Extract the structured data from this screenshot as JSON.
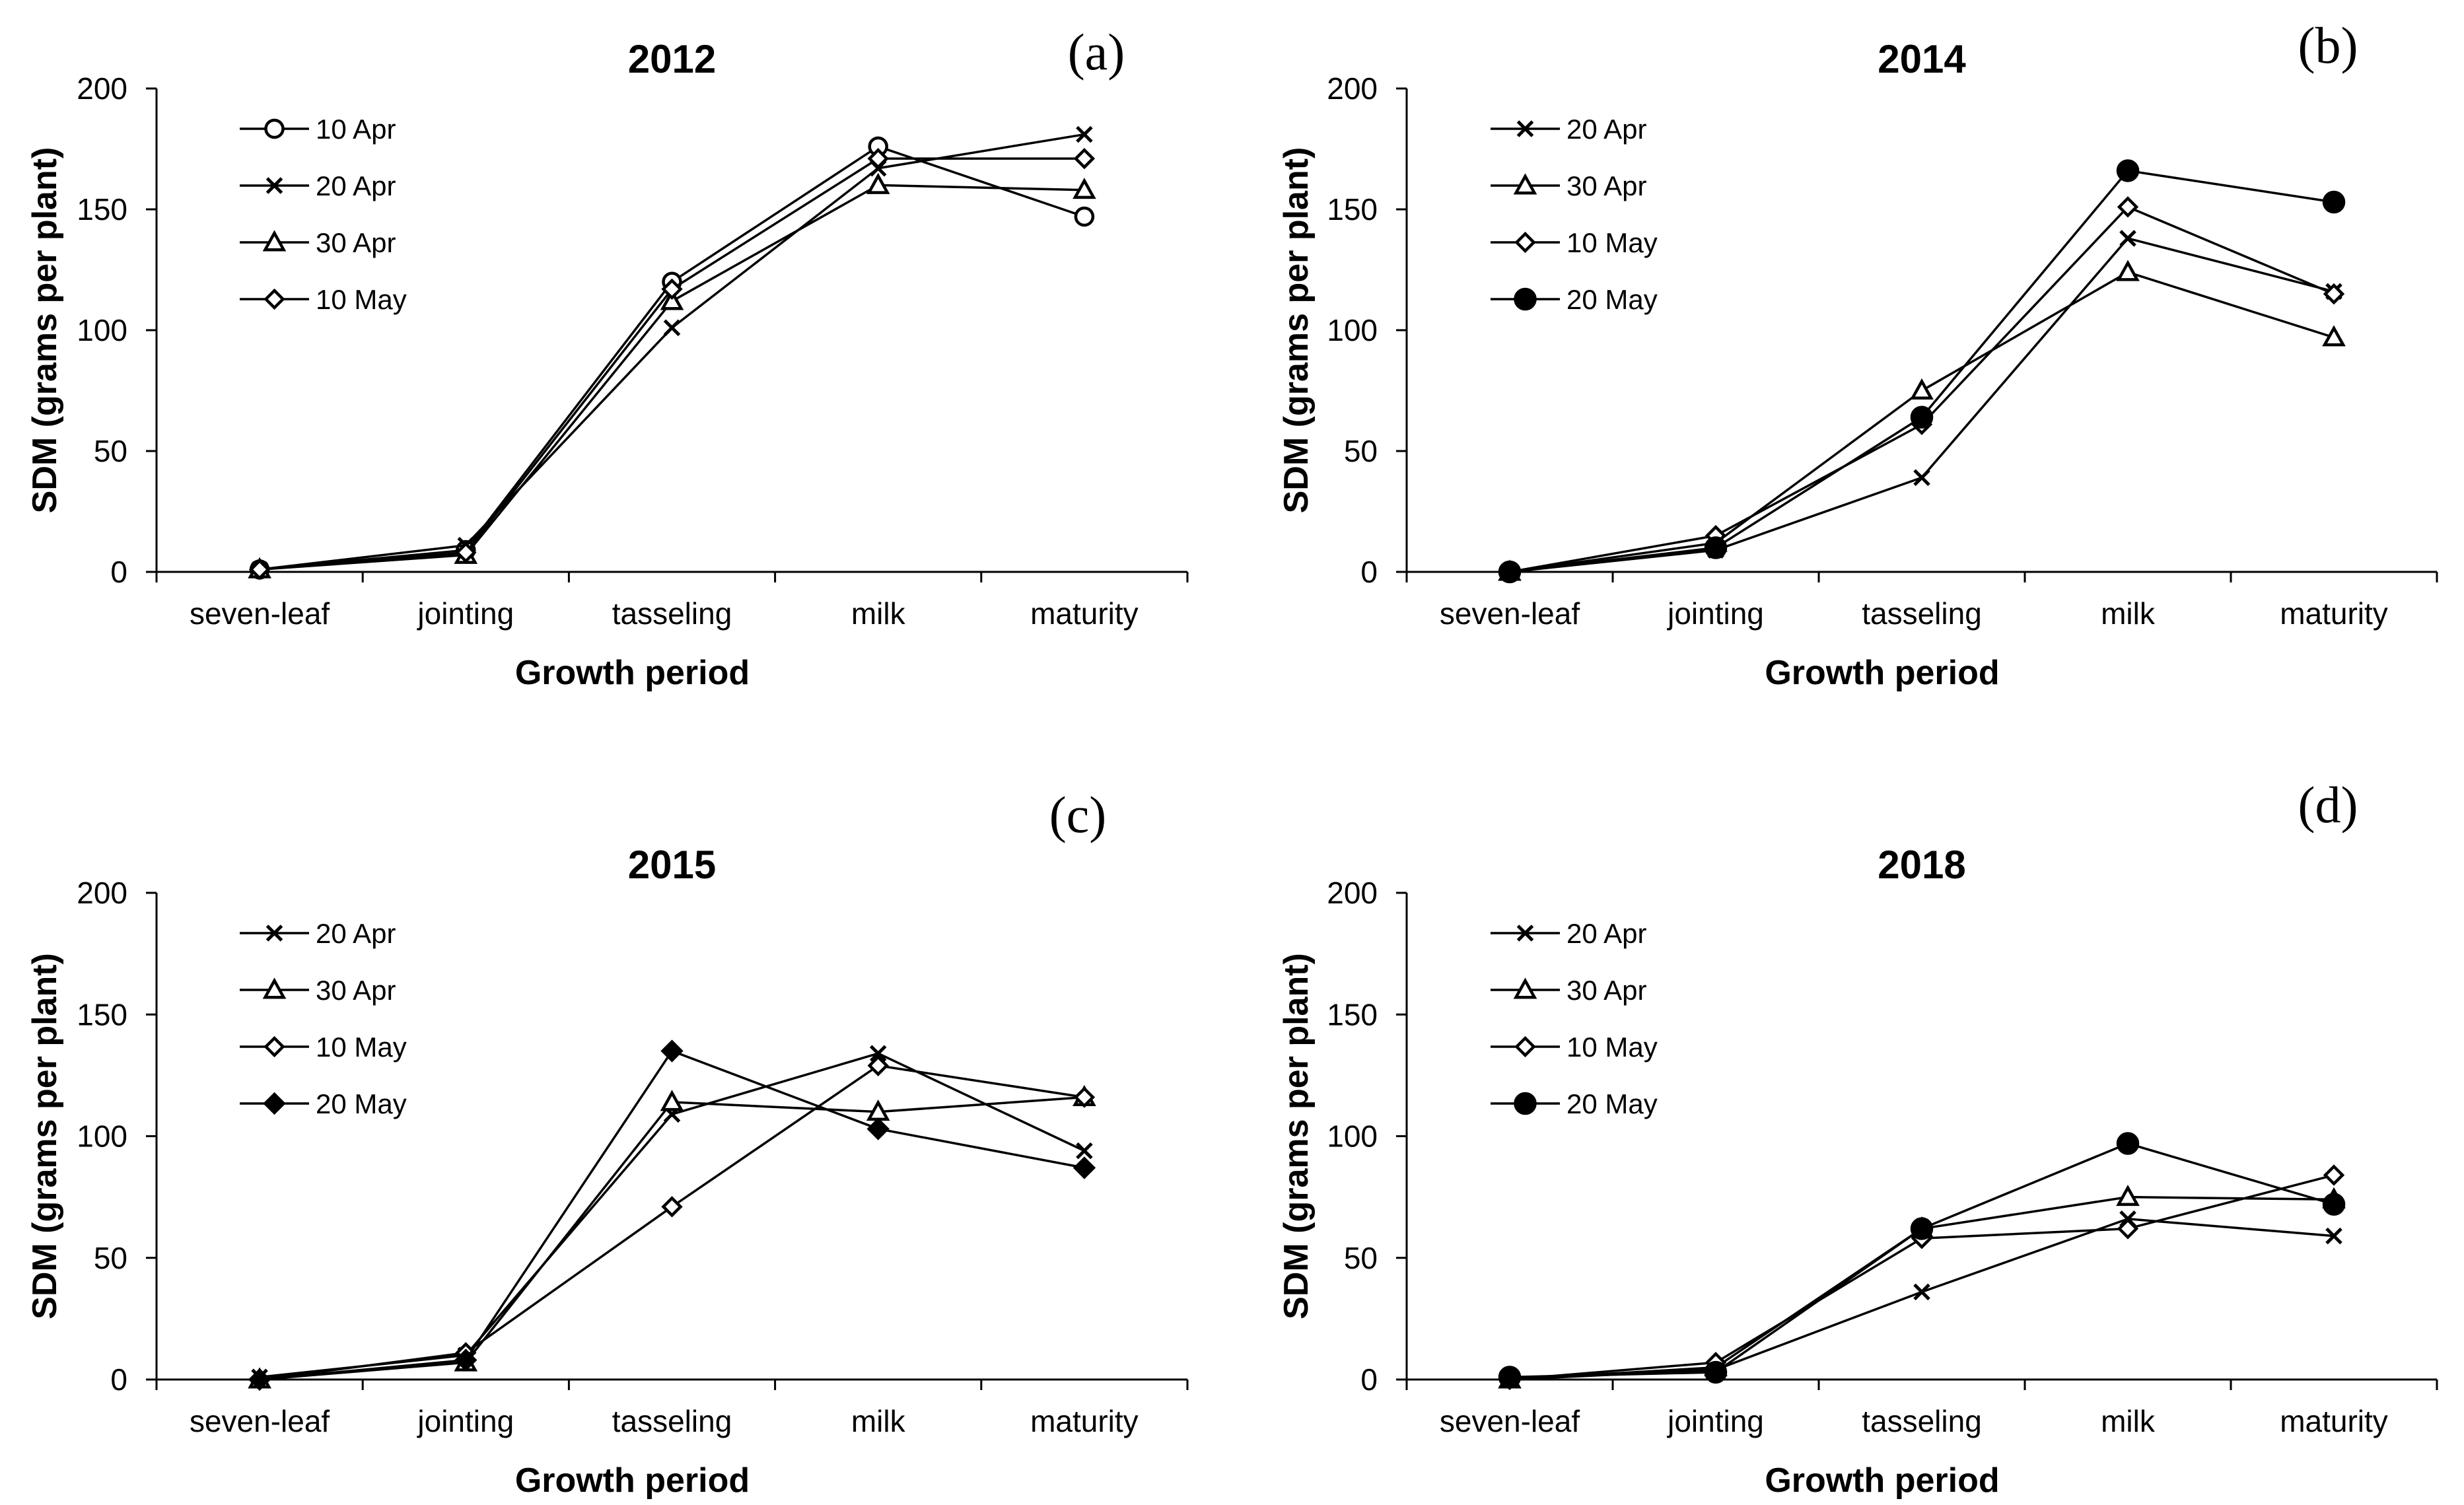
{
  "chart_data": [
    {
      "type": "line",
      "panel_label": "(a)",
      "title": "2012",
      "xlabel": "Growth period",
      "ylabel": "SDM (grams per plant)",
      "categories": [
        "seven-leaf",
        "jointing",
        "tasseling",
        "milk",
        "maturity"
      ],
      "ylim": [
        0,
        200
      ],
      "yticks": [
        "0",
        "50",
        "100",
        "150",
        "200"
      ],
      "grid": false,
      "legend_position": "top-left",
      "series": [
        {
          "name": "10 Apr",
          "marker": "circle-open",
          "values": [
            1,
            9,
            120,
            176,
            147
          ]
        },
        {
          "name": "20 Apr",
          "marker": "x",
          "values": [
            1,
            11,
            101,
            167,
            181
          ]
        },
        {
          "name": "30 Apr",
          "marker": "triangle-open",
          "values": [
            1,
            7,
            112,
            160,
            158
          ]
        },
        {
          "name": "10 May",
          "marker": "diamond-open",
          "values": [
            1,
            8,
            117,
            171,
            171
          ]
        }
      ]
    },
    {
      "type": "line",
      "panel_label": "(b)",
      "title": "2014",
      "xlabel": "Growth period",
      "ylabel": "SDM (grams per plant)",
      "categories": [
        "seven-leaf",
        "jointing",
        "tasseling",
        "milk",
        "maturity"
      ],
      "ylim": [
        0,
        200
      ],
      "yticks": [
        "0",
        "50",
        "100",
        "150",
        "200"
      ],
      "grid": false,
      "legend_position": "top-left",
      "series": [
        {
          "name": "20 Apr",
          "marker": "x",
          "values": [
            0,
            9,
            39,
            138,
            116
          ]
        },
        {
          "name": "30 Apr",
          "marker": "triangle-open",
          "values": [
            0,
            12,
            75,
            124,
            97
          ]
        },
        {
          "name": "10 May",
          "marker": "diamond-open",
          "values": [
            0,
            15,
            61,
            151,
            115
          ]
        },
        {
          "name": "20 May",
          "marker": "circle-filled",
          "values": [
            0,
            10,
            64,
            166,
            153
          ]
        }
      ]
    },
    {
      "type": "line",
      "panel_label": "(c)",
      "title": "2015",
      "xlabel": "Growth period",
      "ylabel": "SDM (grams per plant)",
      "categories": [
        "seven-leaf",
        "jointing",
        "tasseling",
        "milk",
        "maturity"
      ],
      "ylim": [
        0,
        200
      ],
      "yticks": [
        "0",
        "50",
        "100",
        "150",
        "200"
      ],
      "grid": false,
      "legend_position": "top-left",
      "series": [
        {
          "name": "20 Apr",
          "marker": "x",
          "values": [
            1,
            10,
            109,
            134,
            94
          ]
        },
        {
          "name": "30 Apr",
          "marker": "triangle-open",
          "values": [
            0,
            7,
            114,
            110,
            116
          ]
        },
        {
          "name": "10 May",
          "marker": "diamond-open",
          "values": [
            0,
            11,
            71,
            129,
            116
          ]
        },
        {
          "name": "20 May",
          "marker": "diamond-filled",
          "values": [
            0,
            8,
            135,
            103,
            87
          ]
        }
      ]
    },
    {
      "type": "line",
      "panel_label": "(d)",
      "title": "2018",
      "xlabel": "Growth period",
      "ylabel": "SDM (grams per plant)",
      "categories": [
        "seven-leaf",
        "jointing",
        "tasseling",
        "milk",
        "maturity"
      ],
      "ylim": [
        0,
        200
      ],
      "yticks": [
        "0",
        "50",
        "100",
        "150",
        "200"
      ],
      "grid": false,
      "legend_position": "top-left",
      "series": [
        {
          "name": "20 Apr",
          "marker": "x",
          "values": [
            0,
            4,
            36,
            66,
            59
          ]
        },
        {
          "name": "30 Apr",
          "marker": "triangle-open",
          "values": [
            0,
            5,
            62,
            75,
            74
          ]
        },
        {
          "name": "10 May",
          "marker": "diamond-open",
          "values": [
            0,
            7,
            58,
            62,
            84
          ]
        },
        {
          "name": "20 May",
          "marker": "circle-filled",
          "values": [
            1,
            3,
            62,
            97,
            72
          ]
        }
      ]
    }
  ]
}
